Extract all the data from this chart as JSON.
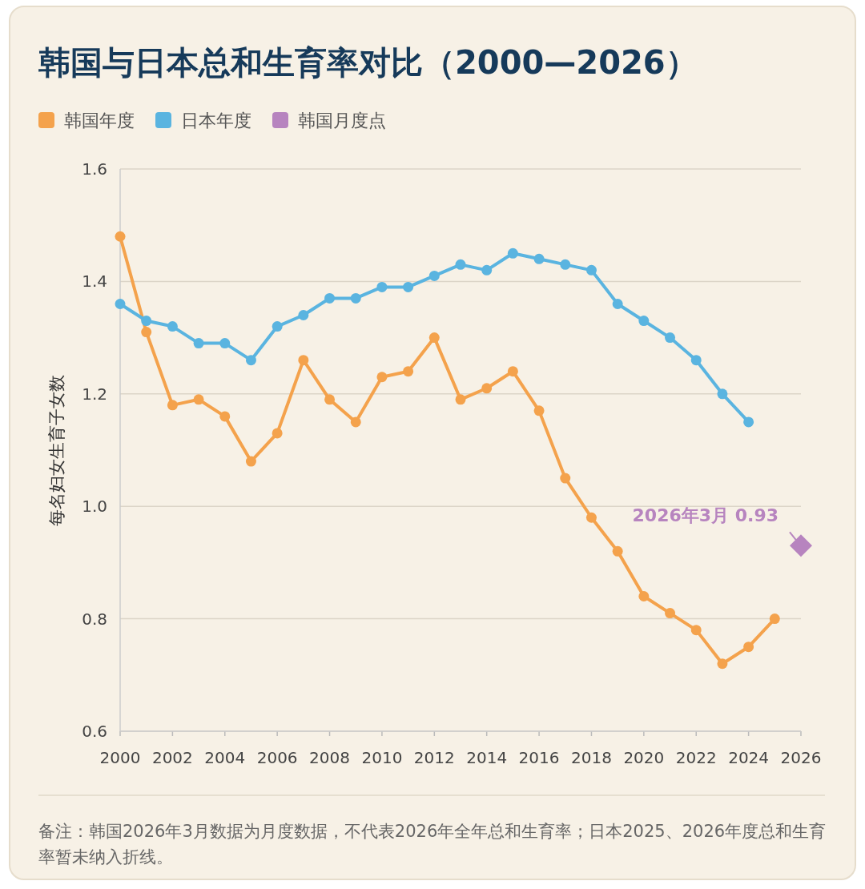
{
  "chart_data": {
    "type": "line",
    "title": "韩国与日本总和生育率对比（2000—2026）",
    "ylabel": "每名妇女生育子女数",
    "x": [
      2000,
      2001,
      2002,
      2003,
      2004,
      2005,
      2006,
      2007,
      2008,
      2009,
      2010,
      2011,
      2012,
      2013,
      2014,
      2015,
      2016,
      2017,
      2018,
      2019,
      2020,
      2021,
      2022,
      2023,
      2024,
      2025
    ],
    "series": [
      {
        "name": "韩国年度",
        "color": "#f4a24c",
        "values": [
          1.48,
          1.31,
          1.18,
          1.19,
          1.16,
          1.08,
          1.13,
          1.26,
          1.19,
          1.15,
          1.23,
          1.24,
          1.3,
          1.19,
          1.21,
          1.24,
          1.17,
          1.05,
          0.98,
          0.92,
          0.84,
          0.81,
          0.78,
          0.72,
          0.75,
          0.8
        ]
      },
      {
        "name": "日本年度",
        "color": "#5ab4e0",
        "values": [
          1.36,
          1.33,
          1.32,
          1.29,
          1.29,
          1.26,
          1.32,
          1.34,
          1.37,
          1.37,
          1.39,
          1.39,
          1.41,
          1.43,
          1.42,
          1.45,
          1.44,
          1.43,
          1.42,
          1.36,
          1.33,
          1.3,
          1.26,
          1.2,
          1.15,
          null
        ]
      },
      {
        "name": "韩国月度点",
        "type": "scatter",
        "marker": "diamond",
        "color": "#b784bf",
        "x": [
          2026
        ],
        "values": [
          0.93
        ]
      }
    ],
    "xlim": [
      2000,
      2026
    ],
    "xticks": [
      2000,
      2002,
      2004,
      2006,
      2008,
      2010,
      2012,
      2014,
      2016,
      2018,
      2020,
      2022,
      2024,
      2026
    ],
    "ylim": [
      0.6,
      1.6
    ],
    "yticks": [
      {
        "value": 0.6,
        "label": "0.6"
      },
      {
        "value": 0.8,
        "label": "0.8"
      },
      {
        "value": 1.0,
        "label": "1.0"
      },
      {
        "value": 1.2,
        "label": "1.2"
      },
      {
        "value": 1.4,
        "label": "1.4"
      },
      {
        "value": 1.6,
        "label": "1.6"
      }
    ],
    "grid": "y",
    "legend": "top left",
    "marker": "circle",
    "annotations": [
      {
        "text": "2026年3月 0.93",
        "x": 2026,
        "y": 0.93
      },
      "备注：韩国2026年3月数据为月度数据，不代表2026年全年总和生育率；日本2025、2026年度总和生育率暂未纳入折线。"
    ]
  }
}
